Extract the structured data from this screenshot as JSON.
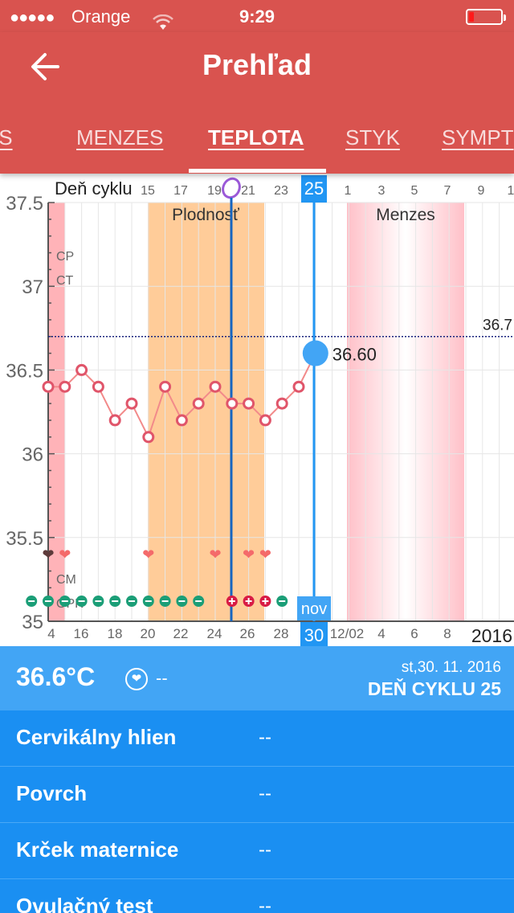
{
  "status_bar": {
    "carrier": "Orange",
    "time": "9:29",
    "signal_dots": "●●●●●"
  },
  "header": {
    "title": "Prehľad"
  },
  "tabs": [
    {
      "label": "OS",
      "active": false
    },
    {
      "label": "MENZES",
      "active": false
    },
    {
      "label": "TEPLOTA",
      "active": true
    },
    {
      "label": "STYK",
      "active": false
    },
    {
      "label": "SYMPT",
      "active": false
    }
  ],
  "chart_data": {
    "type": "line",
    "series": [
      {
        "name": "",
        "x": [
          14,
          15,
          16,
          17,
          18,
          19,
          20,
          21,
          22,
          23,
          24,
          25,
          26,
          27,
          28,
          29,
          30
        ],
        "values": [
          36.4,
          36.4,
          36.5,
          36.4,
          36.2,
          36.3,
          36.1,
          36.4,
          36.2,
          36.3,
          36.4,
          36.3,
          36.3,
          36.2,
          36.3,
          36.4,
          36.6
        ]
      }
    ],
    "ylim": [
      35,
      37.5
    ],
    "y_ticks": [
      "35",
      "35.5",
      "36",
      "36.5",
      "37",
      "37.5"
    ],
    "cycle_label": "Deň cyklu",
    "cycle_ticks": [
      "15",
      "17",
      "19",
      "21",
      "23",
      "25",
      "1",
      "3",
      "5",
      "7",
      "9",
      "1"
    ],
    "selected_cycle_day": "25",
    "date_ticks": [
      "4",
      "16",
      "18",
      "20",
      "22",
      "24",
      "26",
      "28",
      "12/02",
      "4",
      "6",
      "8"
    ],
    "selected_month": "nov",
    "selected_date": "30",
    "year": "2016",
    "coverline_label": "36.7",
    "coverline_value": 36.7,
    "selected_value_label": "36.60",
    "fertile_label": "Plodnosť",
    "menses_label": "Menzes",
    "row_labels": [
      "CP",
      "CT",
      "CM",
      "OPK"
    ],
    "hearts_dark": [
      14
    ],
    "hearts": [
      15,
      20,
      24,
      26,
      27
    ],
    "opk_negative": [
      13,
      14,
      15,
      16,
      17,
      18,
      19,
      20,
      21,
      22,
      23,
      28
    ],
    "opk_positive": [
      25,
      26,
      27
    ],
    "colors": {
      "header": "#d9534f",
      "line": "#f28a8a",
      "marker": "#e0556a",
      "fertile": "#ffcc99",
      "selection": "#2196f3",
      "opk_negative": "#1b9e77",
      "opk_positive": "#d81b45"
    }
  },
  "summary": {
    "temperature": "36.6°C",
    "note": "--",
    "date": "st,30. 11. 2016",
    "cycle_day": "DEŇ CYKLU 25"
  },
  "details": [
    {
      "label": "Cervikálny hlien",
      "value": "--"
    },
    {
      "label": "Povrch",
      "value": "--"
    },
    {
      "label": "Krček maternice",
      "value": "--"
    },
    {
      "label": "Ovulačný test",
      "value": "--"
    }
  ]
}
